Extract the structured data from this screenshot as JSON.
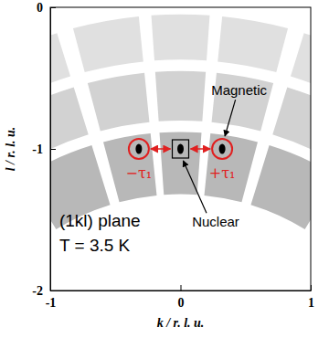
{
  "chart_data": {
    "type": "scatter",
    "xlabel": "k / r. l. u.",
    "ylabel": "l / r. l. u.",
    "xlim": [
      -1,
      1
    ],
    "ylim": [
      -2,
      0
    ],
    "xticks": [
      -1,
      0,
      1
    ],
    "yticks": [
      0,
      -1,
      -2
    ],
    "x": [
      -0.32,
      0,
      0.32
    ],
    "values": [
      -1,
      -1,
      -1
    ],
    "color": "#000000",
    "marker": "spot",
    "annotations": {
      "plane": "(1kl) plane",
      "temperature": "T = 3.5 K",
      "nuclear": "Nuclear",
      "magnetic": "Magnetic",
      "minus_tau": "−τ₁",
      "plus_tau": "+τ₁"
    }
  }
}
